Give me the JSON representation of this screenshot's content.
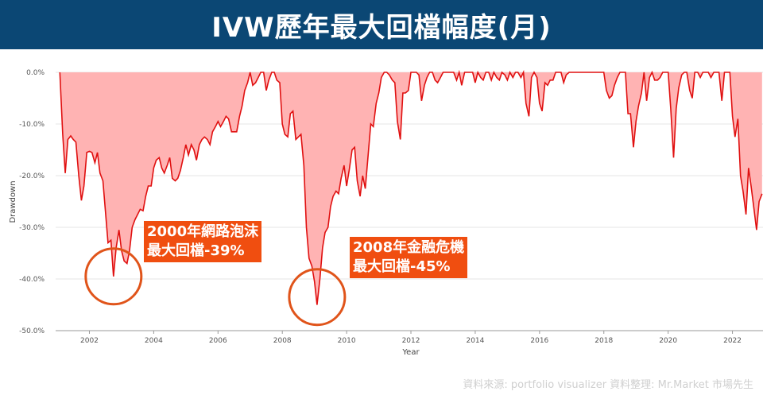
{
  "header": {
    "title": "IVW歷年最大回檔幅度(月)"
  },
  "chart_data": {
    "type": "area",
    "xlabel": "Year",
    "ylabel": "Drawdown",
    "xlim": [
      2000.95,
      2022.95
    ],
    "ylim": [
      -50,
      0
    ],
    "x_ticks": [
      2002,
      2004,
      2006,
      2008,
      2010,
      2012,
      2014,
      2016,
      2018,
      2020,
      2022
    ],
    "y_ticks": [
      {
        "value": 0,
        "label": "0.0%"
      },
      {
        "value": -10,
        "label": "-10.0%"
      },
      {
        "value": -20,
        "label": "-20.0%"
      },
      {
        "value": -30,
        "label": "-30.0%"
      },
      {
        "value": -40,
        "label": "-40.0%"
      },
      {
        "value": -50,
        "label": "-50.0%"
      }
    ],
    "grid": true,
    "series": [
      {
        "fill_color": "#ffb3b3",
        "line_color": "#e01010",
        "points": [
          [
            2001.08,
            0
          ],
          [
            2001.17,
            -12
          ],
          [
            2001.25,
            -19.5
          ],
          [
            2001.33,
            -13
          ],
          [
            2001.42,
            -12.3
          ],
          [
            2001.5,
            -13
          ],
          [
            2001.58,
            -13.5
          ],
          [
            2001.67,
            -20
          ],
          [
            2001.75,
            -24.8
          ],
          [
            2001.83,
            -22
          ],
          [
            2001.92,
            -15.5
          ],
          [
            2002.0,
            -15.3
          ],
          [
            2002.08,
            -15.5
          ],
          [
            2002.17,
            -17.5
          ],
          [
            2002.25,
            -15.5
          ],
          [
            2002.33,
            -19.5
          ],
          [
            2002.42,
            -21
          ],
          [
            2002.5,
            -27
          ],
          [
            2002.58,
            -33
          ],
          [
            2002.67,
            -32.5
          ],
          [
            2002.75,
            -39.5
          ],
          [
            2002.83,
            -34
          ],
          [
            2002.92,
            -30.5
          ],
          [
            2003.0,
            -34.5
          ],
          [
            2003.08,
            -36.5
          ],
          [
            2003.17,
            -37
          ],
          [
            2003.25,
            -34.5
          ],
          [
            2003.33,
            -30
          ],
          [
            2003.42,
            -28.5
          ],
          [
            2003.5,
            -27.5
          ],
          [
            2003.58,
            -26.5
          ],
          [
            2003.67,
            -26.8
          ],
          [
            2003.75,
            -24
          ],
          [
            2003.83,
            -22
          ],
          [
            2003.92,
            -22
          ],
          [
            2004.0,
            -18.5
          ],
          [
            2004.08,
            -17
          ],
          [
            2004.17,
            -16.5
          ],
          [
            2004.25,
            -18.5
          ],
          [
            2004.33,
            -19.5
          ],
          [
            2004.42,
            -18
          ],
          [
            2004.5,
            -16.5
          ],
          [
            2004.58,
            -20.5
          ],
          [
            2004.67,
            -21
          ],
          [
            2004.75,
            -20.5
          ],
          [
            2004.83,
            -19
          ],
          [
            2004.92,
            -16.5
          ],
          [
            2005.0,
            -14
          ],
          [
            2005.08,
            -16
          ],
          [
            2005.17,
            -14
          ],
          [
            2005.25,
            -15
          ],
          [
            2005.33,
            -17
          ],
          [
            2005.42,
            -14
          ],
          [
            2005.5,
            -13
          ],
          [
            2005.58,
            -12.5
          ],
          [
            2005.67,
            -13
          ],
          [
            2005.75,
            -14
          ],
          [
            2005.83,
            -11.5
          ],
          [
            2005.92,
            -10.5
          ],
          [
            2006.0,
            -9.5
          ],
          [
            2006.08,
            -10.5
          ],
          [
            2006.17,
            -9.5
          ],
          [
            2006.25,
            -8.5
          ],
          [
            2006.33,
            -9
          ],
          [
            2006.42,
            -11.5
          ],
          [
            2006.5,
            -11.5
          ],
          [
            2006.58,
            -11.5
          ],
          [
            2006.67,
            -8.5
          ],
          [
            2006.75,
            -6.5
          ],
          [
            2006.83,
            -3.5
          ],
          [
            2006.92,
            -2
          ],
          [
            2007.0,
            0
          ],
          [
            2007.08,
            -2.5
          ],
          [
            2007.17,
            -2
          ],
          [
            2007.25,
            -1
          ],
          [
            2007.33,
            0
          ],
          [
            2007.42,
            0
          ],
          [
            2007.5,
            -3.5
          ],
          [
            2007.58,
            -1.5
          ],
          [
            2007.67,
            0
          ],
          [
            2007.75,
            0
          ],
          [
            2007.83,
            -1.5
          ],
          [
            2007.92,
            -2
          ],
          [
            2008.0,
            -10
          ],
          [
            2008.08,
            -12
          ],
          [
            2008.17,
            -12.5
          ],
          [
            2008.25,
            -8
          ],
          [
            2008.33,
            -7.5
          ],
          [
            2008.42,
            -13
          ],
          [
            2008.5,
            -12.5
          ],
          [
            2008.58,
            -12
          ],
          [
            2008.67,
            -18
          ],
          [
            2008.75,
            -30
          ],
          [
            2008.83,
            -36
          ],
          [
            2008.92,
            -37.5
          ],
          [
            2009.0,
            -40.5
          ],
          [
            2009.08,
            -45
          ],
          [
            2009.17,
            -40
          ],
          [
            2009.25,
            -34
          ],
          [
            2009.33,
            -31
          ],
          [
            2009.42,
            -30
          ],
          [
            2009.5,
            -26
          ],
          [
            2009.58,
            -24
          ],
          [
            2009.67,
            -23
          ],
          [
            2009.75,
            -23.5
          ],
          [
            2009.83,
            -20.5
          ],
          [
            2009.92,
            -18
          ],
          [
            2010.0,
            -22
          ],
          [
            2010.08,
            -19
          ],
          [
            2010.17,
            -15
          ],
          [
            2010.25,
            -14.5
          ],
          [
            2010.33,
            -21
          ],
          [
            2010.42,
            -24
          ],
          [
            2010.5,
            -20
          ],
          [
            2010.58,
            -22.5
          ],
          [
            2010.67,
            -16
          ],
          [
            2010.75,
            -10
          ],
          [
            2010.83,
            -10.5
          ],
          [
            2010.92,
            -6
          ],
          [
            2011.0,
            -4
          ],
          [
            2011.08,
            -1
          ],
          [
            2011.17,
            0
          ],
          [
            2011.25,
            0
          ],
          [
            2011.33,
            -0.5
          ],
          [
            2011.42,
            -1.5
          ],
          [
            2011.5,
            -2
          ],
          [
            2011.58,
            -9.5
          ],
          [
            2011.67,
            -13
          ],
          [
            2011.75,
            -4
          ],
          [
            2011.83,
            -4
          ],
          [
            2011.92,
            -3.5
          ],
          [
            2012.0,
            0
          ],
          [
            2012.08,
            0
          ],
          [
            2012.17,
            0
          ],
          [
            2012.25,
            -0.5
          ],
          [
            2012.33,
            -5.5
          ],
          [
            2012.42,
            -2.5
          ],
          [
            2012.5,
            -1
          ],
          [
            2012.58,
            0
          ],
          [
            2012.67,
            0
          ],
          [
            2012.75,
            -1.5
          ],
          [
            2012.83,
            -2
          ],
          [
            2012.92,
            -1
          ],
          [
            2013.0,
            0
          ],
          [
            2013.08,
            0
          ],
          [
            2013.17,
            0
          ],
          [
            2013.25,
            0
          ],
          [
            2013.33,
            0
          ],
          [
            2013.42,
            -1.5
          ],
          [
            2013.5,
            0
          ],
          [
            2013.58,
            -2.5
          ],
          [
            2013.67,
            0
          ],
          [
            2013.75,
            0
          ],
          [
            2013.83,
            0
          ],
          [
            2013.92,
            0
          ],
          [
            2014.0,
            -2
          ],
          [
            2014.08,
            0
          ],
          [
            2014.17,
            -1
          ],
          [
            2014.25,
            -1.5
          ],
          [
            2014.33,
            0
          ],
          [
            2014.42,
            0
          ],
          [
            2014.5,
            -1.5
          ],
          [
            2014.58,
            0
          ],
          [
            2014.67,
            -1
          ],
          [
            2014.75,
            -1.5
          ],
          [
            2014.83,
            0
          ],
          [
            2014.92,
            -0.5
          ],
          [
            2015.0,
            -1.5
          ],
          [
            2015.08,
            0
          ],
          [
            2015.17,
            -1
          ],
          [
            2015.25,
            0
          ],
          [
            2015.33,
            0
          ],
          [
            2015.42,
            -1
          ],
          [
            2015.5,
            0
          ],
          [
            2015.58,
            -6
          ],
          [
            2015.67,
            -8.5
          ],
          [
            2015.75,
            -1
          ],
          [
            2015.83,
            0
          ],
          [
            2015.92,
            -1
          ],
          [
            2016.0,
            -6
          ],
          [
            2016.08,
            -7.5
          ],
          [
            2016.17,
            -2
          ],
          [
            2016.25,
            -2.5
          ],
          [
            2016.33,
            -1.5
          ],
          [
            2016.42,
            -1.5
          ],
          [
            2016.5,
            0
          ],
          [
            2016.58,
            0
          ],
          [
            2016.67,
            0
          ],
          [
            2016.75,
            -2
          ],
          [
            2016.83,
            -0.5
          ],
          [
            2016.92,
            0
          ],
          [
            2017.0,
            0
          ],
          [
            2017.08,
            0
          ],
          [
            2017.17,
            0
          ],
          [
            2017.25,
            0
          ],
          [
            2017.33,
            0
          ],
          [
            2017.42,
            0
          ],
          [
            2017.5,
            0
          ],
          [
            2017.58,
            0
          ],
          [
            2017.67,
            0
          ],
          [
            2017.75,
            0
          ],
          [
            2017.83,
            0
          ],
          [
            2017.92,
            0
          ],
          [
            2018.0,
            0
          ],
          [
            2018.08,
            -3.5
          ],
          [
            2018.17,
            -5
          ],
          [
            2018.25,
            -4.5
          ],
          [
            2018.33,
            -2.5
          ],
          [
            2018.42,
            -1
          ],
          [
            2018.5,
            0
          ],
          [
            2018.58,
            0
          ],
          [
            2018.67,
            0
          ],
          [
            2018.75,
            -8
          ],
          [
            2018.83,
            -8
          ],
          [
            2018.92,
            -14.5
          ],
          [
            2019.0,
            -9.5
          ],
          [
            2019.08,
            -6.5
          ],
          [
            2019.17,
            -4
          ],
          [
            2019.25,
            0
          ],
          [
            2019.33,
            -5.5
          ],
          [
            2019.42,
            -1
          ],
          [
            2019.5,
            0
          ],
          [
            2019.58,
            -1.5
          ],
          [
            2019.67,
            -1.5
          ],
          [
            2019.75,
            -1
          ],
          [
            2019.83,
            0
          ],
          [
            2019.92,
            0
          ],
          [
            2020.0,
            0
          ],
          [
            2020.08,
            -7
          ],
          [
            2020.17,
            -16.5
          ],
          [
            2020.25,
            -7
          ],
          [
            2020.33,
            -3
          ],
          [
            2020.42,
            -0.5
          ],
          [
            2020.5,
            0
          ],
          [
            2020.58,
            0
          ],
          [
            2020.67,
            -3.5
          ],
          [
            2020.75,
            -5
          ],
          [
            2020.83,
            0
          ],
          [
            2020.92,
            0
          ],
          [
            2021.0,
            -1
          ],
          [
            2021.08,
            0
          ],
          [
            2021.17,
            0
          ],
          [
            2021.25,
            0
          ],
          [
            2021.33,
            -1
          ],
          [
            2021.42,
            0
          ],
          [
            2021.5,
            0
          ],
          [
            2021.58,
            0
          ],
          [
            2021.67,
            -5.5
          ],
          [
            2021.75,
            0
          ],
          [
            2021.83,
            0
          ],
          [
            2021.92,
            0
          ],
          [
            2022.0,
            -8.5
          ],
          [
            2022.08,
            -12.5
          ],
          [
            2022.17,
            -9
          ],
          [
            2022.25,
            -20
          ],
          [
            2022.33,
            -23
          ],
          [
            2022.42,
            -27.5
          ],
          [
            2022.5,
            -18.5
          ],
          [
            2022.58,
            -22
          ],
          [
            2022.67,
            -26.5
          ],
          [
            2022.75,
            -30.5
          ],
          [
            2022.83,
            -25
          ],
          [
            2022.92,
            -23.5
          ]
        ]
      }
    ],
    "annotations": [
      {
        "id": "dotcom",
        "line1": "2000年網路泡沫",
        "line2": "最大回檔-39%",
        "x": 2002.75,
        "y": -39.5
      },
      {
        "id": "gfc",
        "line1": "2008年金融危機",
        "line2": "最大回檔-45%",
        "x": 2009.08,
        "y": -43.5
      }
    ]
  },
  "footer": {
    "source": "資料來源:   portfolio visualizer    資料整理: Mr.Market  市場先生"
  },
  "colors": {
    "banner": "#0b4774",
    "annotation": "#f04e10",
    "circle": "#e0541a"
  }
}
